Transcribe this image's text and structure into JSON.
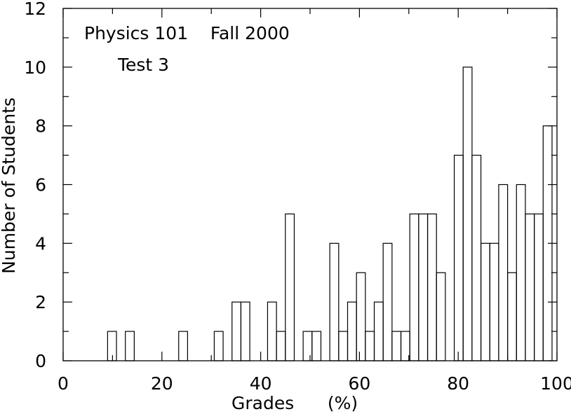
{
  "chart_data": {
    "type": "bar",
    "title_lines": [
      "Physics 101    Fall 2000",
      "Test 3"
    ],
    "xlabel": "Grades      (%)",
    "ylabel": "Number of Students",
    "xlim": [
      0,
      100
    ],
    "ylim": [
      0,
      12
    ],
    "x_ticks": [
      0,
      20,
      40,
      60,
      80,
      100
    ],
    "y_ticks": [
      0,
      2,
      4,
      6,
      8,
      10,
      12
    ],
    "bin_width": 1.8,
    "bins": [
      {
        "start": 9.0,
        "value": 1
      },
      {
        "start": 12.6,
        "value": 1
      },
      {
        "start": 23.4,
        "value": 1
      },
      {
        "start": 30.6,
        "value": 1
      },
      {
        "start": 34.2,
        "value": 2
      },
      {
        "start": 36.0,
        "value": 2
      },
      {
        "start": 41.4,
        "value": 2
      },
      {
        "start": 43.2,
        "value": 1
      },
      {
        "start": 45.0,
        "value": 5
      },
      {
        "start": 48.6,
        "value": 1
      },
      {
        "start": 50.4,
        "value": 1
      },
      {
        "start": 54.0,
        "value": 4
      },
      {
        "start": 55.8,
        "value": 1
      },
      {
        "start": 57.6,
        "value": 2
      },
      {
        "start": 59.4,
        "value": 3
      },
      {
        "start": 61.2,
        "value": 1
      },
      {
        "start": 63.0,
        "value": 2
      },
      {
        "start": 64.8,
        "value": 4
      },
      {
        "start": 66.6,
        "value": 1
      },
      {
        "start": 68.4,
        "value": 1
      },
      {
        "start": 70.2,
        "value": 5
      },
      {
        "start": 72.0,
        "value": 5
      },
      {
        "start": 73.8,
        "value": 5
      },
      {
        "start": 75.6,
        "value": 3
      },
      {
        "start": 79.2,
        "value": 7
      },
      {
        "start": 81.0,
        "value": 10
      },
      {
        "start": 82.8,
        "value": 7
      },
      {
        "start": 84.6,
        "value": 4
      },
      {
        "start": 86.4,
        "value": 4
      },
      {
        "start": 88.2,
        "value": 6
      },
      {
        "start": 90.0,
        "value": 3
      },
      {
        "start": 91.8,
        "value": 6
      },
      {
        "start": 93.6,
        "value": 5
      },
      {
        "start": 95.4,
        "value": 5
      },
      {
        "start": 97.2,
        "value": 8
      }
    ],
    "grid": false,
    "legend": "none"
  }
}
